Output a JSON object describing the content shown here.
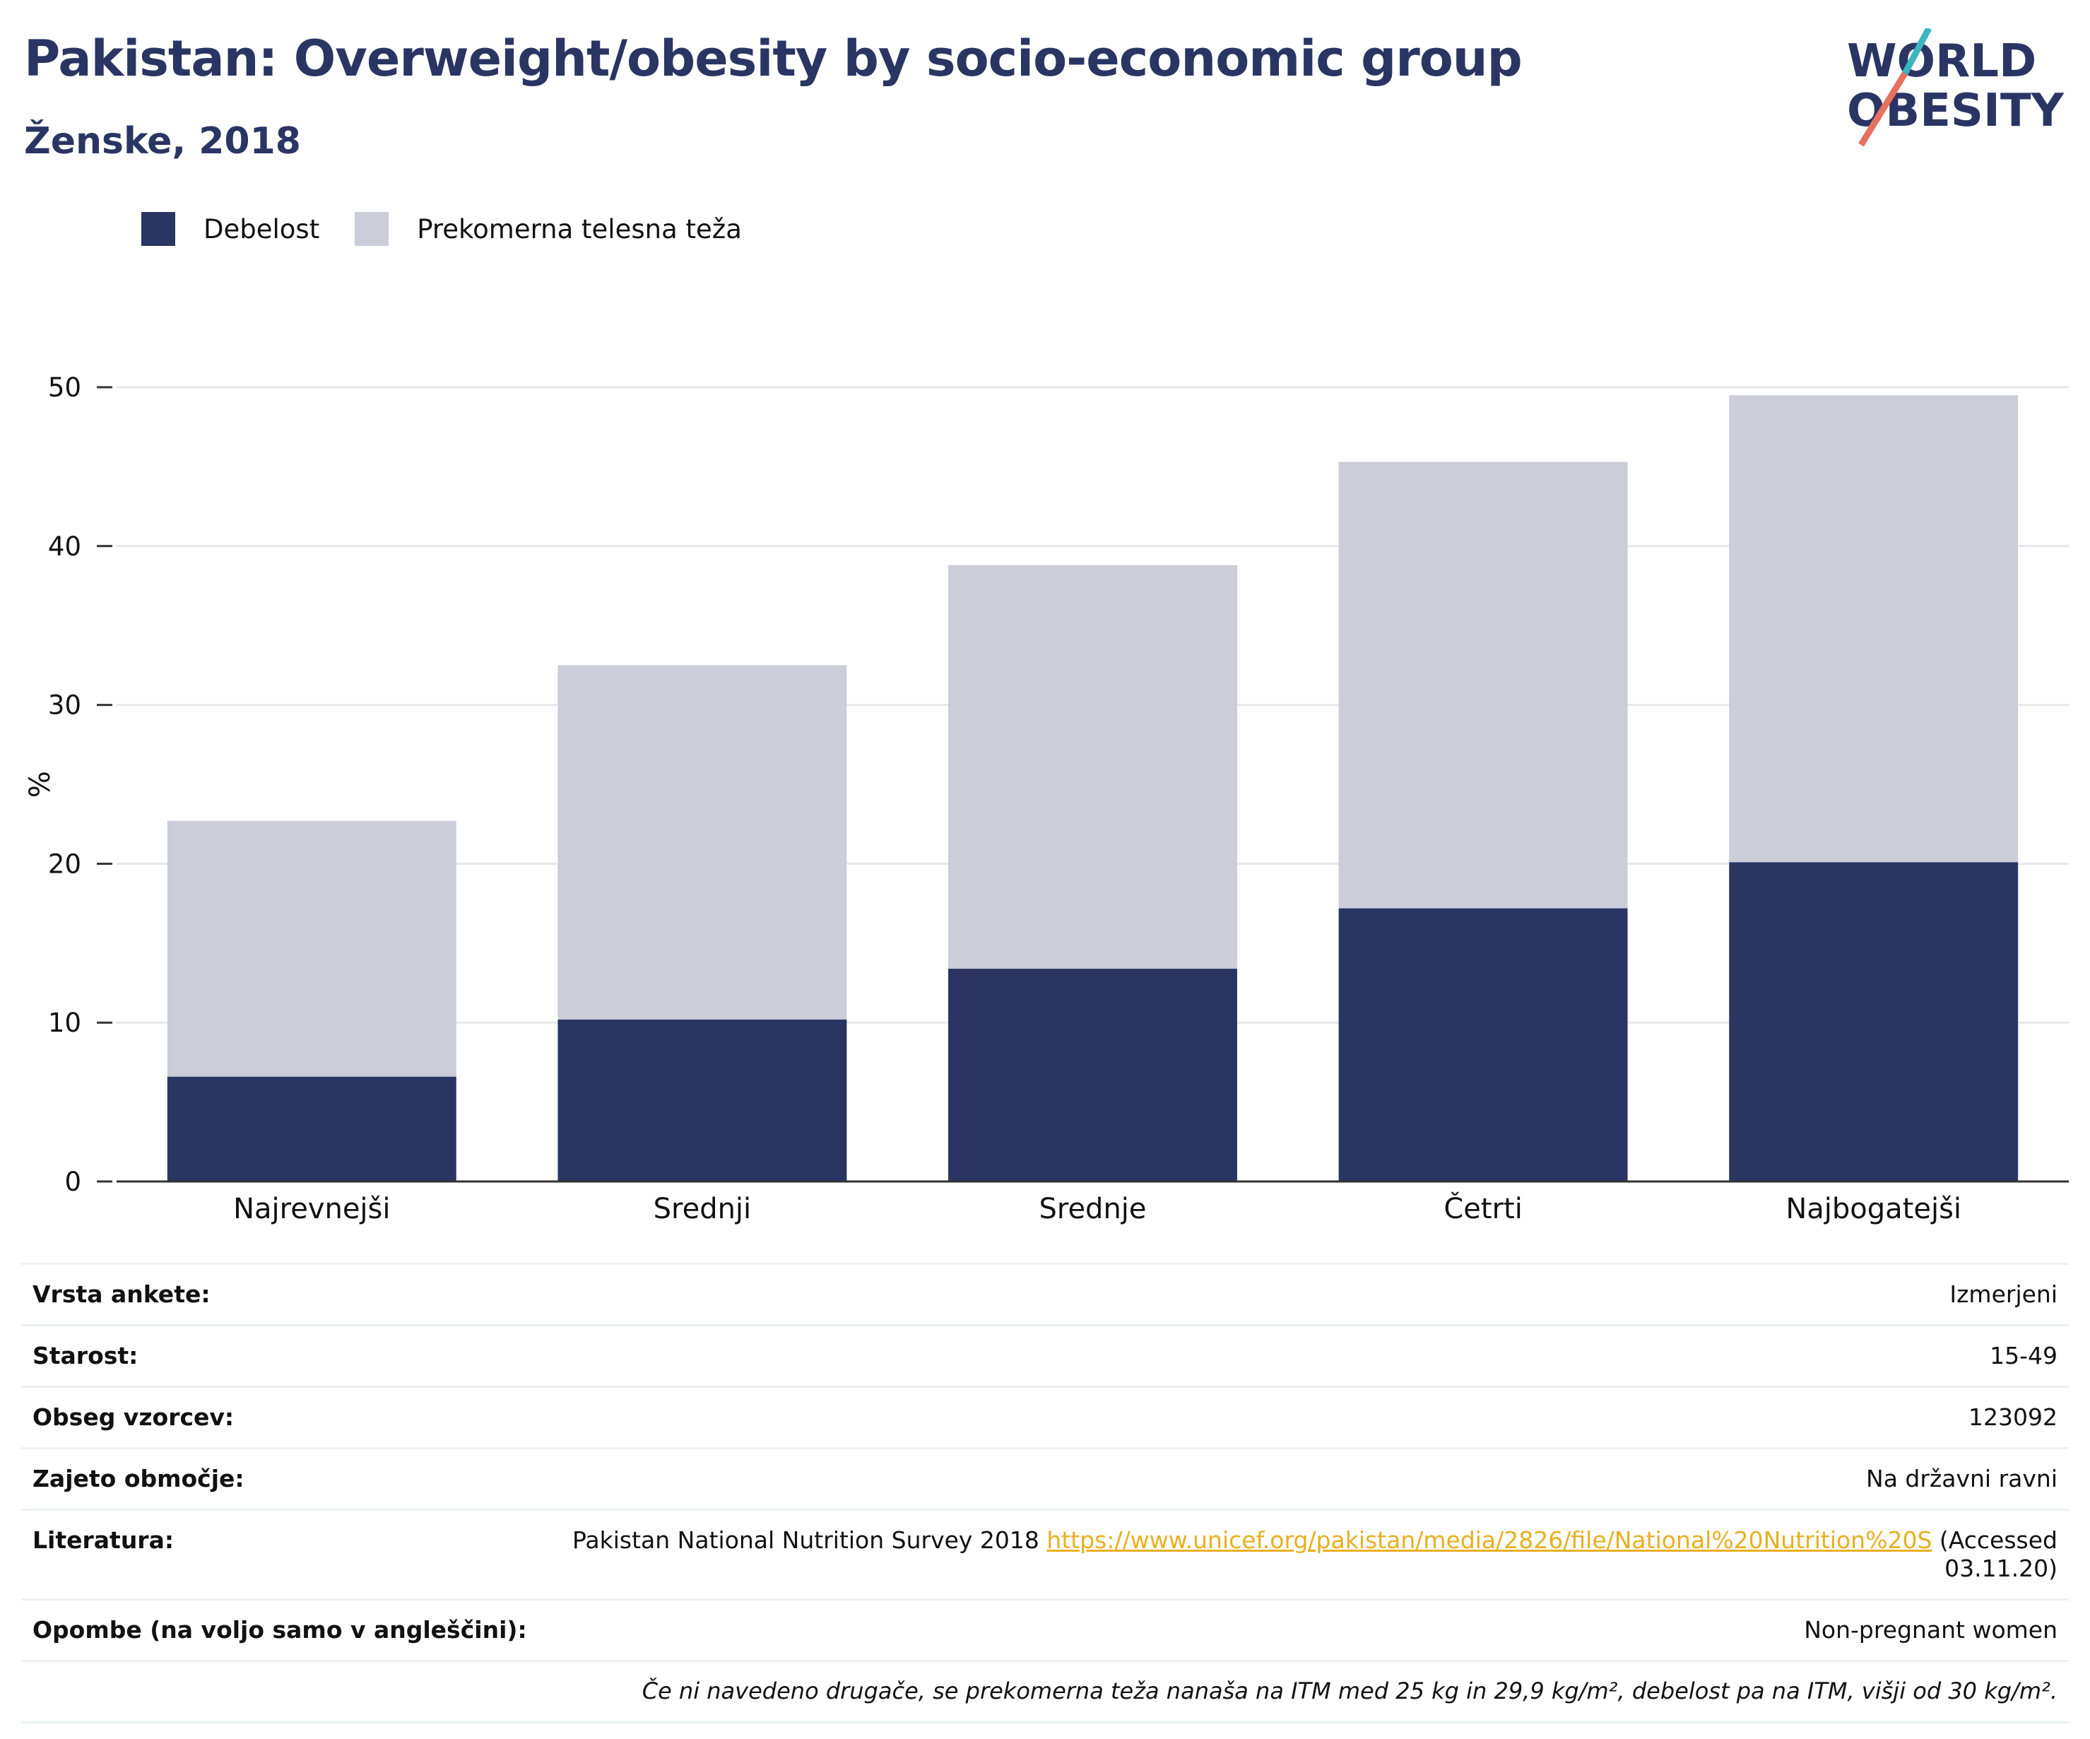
{
  "title": "Pakistan: Overweight/obesity by socio-economic group",
  "subtitle": "Ženske, 2018",
  "logo": {
    "line1": "WORLD",
    "line2": "OBESITY"
  },
  "colors": {
    "obesity": "#2b3564",
    "overweight": "#cbcdd8",
    "title": "#2b3564",
    "link": "#e8b020"
  },
  "legend": [
    {
      "label": "Debelost",
      "color": "#2b3564"
    },
    {
      "label": "Prekomerna telesna teža",
      "color": "#cbcdd8"
    }
  ],
  "chart_data": {
    "type": "bar",
    "stacked": true,
    "categories": [
      "Najrevnejši",
      "Srednji",
      "Srednje",
      "Četrti",
      "Najbogatejši"
    ],
    "series": [
      {
        "name": "Debelost",
        "values": [
          6.6,
          10.2,
          13.4,
          17.2,
          20.1
        ]
      },
      {
        "name": "Prekomerna telesna teža",
        "values": [
          16.1,
          22.3,
          25.4,
          28.1,
          29.4
        ]
      }
    ],
    "ylabel": "%",
    "ylim": [
      0,
      50
    ],
    "yticks": [
      "0",
      "10",
      "20",
      "30",
      "40",
      "50"
    ],
    "grid": true,
    "legend_position": "top-left"
  },
  "meta": [
    {
      "key": "Vrsta ankete:",
      "value": "Izmerjeni"
    },
    {
      "key": "Starost:",
      "value": "15-49"
    },
    {
      "key": "Obseg vzorcev:",
      "value": "123092"
    },
    {
      "key": "Zajeto območje:",
      "value": "Na državni ravni"
    }
  ],
  "literature": {
    "key": "Literatura:",
    "text": "Pakistan National Nutrition Survey 2018",
    "url": "https://www.unicef.org/pakistan/media/2826/file/National%20Nutrition%20S",
    "accessed": "(Accessed 03.11.20)"
  },
  "notes": {
    "key": "Opombe (na voljo samo v angleščini):",
    "value": "Non-pregnant women"
  },
  "footnote": "Če ni navedeno drugače, se prekomerna teža nanaša na ITM med 25 kg in 29,9 kg/m², debelost pa na ITM, višji od 30 kg/m²."
}
